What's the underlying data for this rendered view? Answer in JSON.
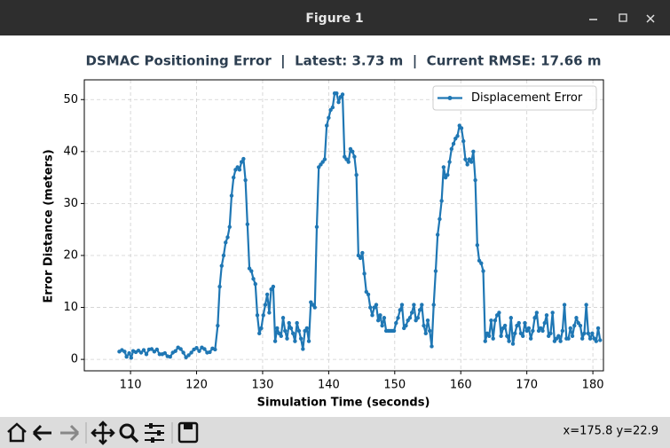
{
  "window": {
    "title": "Figure 1"
  },
  "chart_data": {
    "type": "line",
    "title": "DSMAC Positioning Error  |  Latest: 3.73 m  |  Current RMSE: 17.66 m",
    "x_label": "Simulation Time (seconds)",
    "y_label": "Error Distance (meters)",
    "x": [
      108.3,
      108.7,
      109.1,
      109.4,
      109.8,
      110.1,
      110.4,
      110.8,
      111.2,
      111.6,
      112,
      112.4,
      112.8,
      113.2,
      113.6,
      114,
      114.4,
      114.8,
      115.2,
      115.6,
      116,
      116.4,
      116.8,
      117.2,
      117.6,
      118,
      118.4,
      118.8,
      119.2,
      119.6,
      120,
      120.4,
      120.8,
      121.2,
      121.6,
      122,
      122.4,
      122.8,
      123.2,
      123.5,
      123.8,
      124.1,
      124.4,
      124.7,
      125,
      125.3,
      125.6,
      125.9,
      126.2,
      126.5,
      126.8,
      127.1,
      127.4,
      127.7,
      128,
      128.3,
      128.6,
      128.9,
      129.2,
      129.5,
      129.8,
      130.1,
      130.4,
      130.7,
      131,
      131.3,
      131.6,
      131.9,
      132.2,
      132.5,
      132.8,
      133.1,
      133.4,
      133.7,
      134,
      134.3,
      134.6,
      134.9,
      135.2,
      135.5,
      135.8,
      136.1,
      136.4,
      136.7,
      137,
      137.3,
      137.6,
      137.9,
      138.2,
      138.5,
      138.8,
      139.1,
      139.4,
      139.7,
      140,
      140.3,
      140.6,
      140.9,
      141.2,
      141.5,
      141.8,
      142.1,
      142.4,
      142.7,
      143,
      143.3,
      143.6,
      143.9,
      144.2,
      144.5,
      144.8,
      145.1,
      145.4,
      145.7,
      146,
      146.3,
      146.6,
      146.9,
      147.2,
      147.5,
      147.8,
      148.1,
      148.4,
      148.7,
      149,
      149.3,
      149.6,
      149.9,
      150.2,
      150.5,
      150.8,
      151.1,
      151.4,
      151.7,
      152,
      152.3,
      152.6,
      152.9,
      153.2,
      153.5,
      153.8,
      154.1,
      154.4,
      154.7,
      155,
      155.3,
      155.6,
      155.9,
      156.2,
      156.5,
      156.8,
      157.1,
      157.4,
      157.7,
      158,
      158.3,
      158.6,
      158.9,
      159.2,
      159.5,
      159.8,
      160.1,
      160.4,
      160.7,
      161,
      161.3,
      161.6,
      161.9,
      162.2,
      162.5,
      162.8,
      163.1,
      163.4,
      163.7,
      164,
      164.3,
      164.6,
      164.9,
      165.2,
      165.5,
      165.8,
      166.1,
      166.4,
      166.7,
      167,
      167.3,
      167.6,
      167.9,
      168.2,
      168.5,
      168.8,
      169.1,
      169.4,
      169.7,
      170,
      170.3,
      170.6,
      170.9,
      171.2,
      171.5,
      171.8,
      172.1,
      172.4,
      172.7,
      173,
      173.3,
      173.6,
      173.9,
      174.2,
      174.5,
      174.8,
      175.1,
      175.4,
      175.7,
      176,
      176.3,
      176.6,
      176.9,
      177.2,
      177.5,
      177.8,
      178.1,
      178.4,
      178.7,
      179,
      179.3,
      179.6,
      179.9,
      180.2,
      180.5,
      180.8,
      181.1
    ],
    "series": [
      {
        "name": "Displacement Error",
        "color": "#1f77b4",
        "values": [
          1.5,
          1.8,
          1.5,
          0.5,
          1.2,
          0.3,
          1.6,
          1.4,
          1.7,
          1.3,
          1.8,
          1.0,
          1.9,
          2.0,
          1.5,
          1.9,
          1.0,
          1.0,
          1.2,
          0.6,
          0.5,
          1.3,
          1.6,
          2.3,
          2.0,
          1.3,
          0.4,
          0.8,
          1.3,
          1.9,
          2.2,
          1.6,
          2.3,
          2.0,
          1.3,
          1.4,
          2.1,
          1.9,
          6.5,
          14,
          18,
          20,
          22.5,
          23.5,
          25.5,
          31.5,
          35,
          36.5,
          37,
          36.5,
          38,
          38.6,
          34.5,
          26,
          17.5,
          17,
          15.5,
          14.5,
          8.5,
          5,
          6,
          8.5,
          10.5,
          12.5,
          9,
          13.5,
          14,
          3.5,
          6,
          5,
          4.5,
          8,
          5.5,
          4,
          7,
          6,
          5,
          3.5,
          7,
          5.5,
          4,
          2,
          5.5,
          6,
          3.5,
          11,
          10.5,
          10,
          25.5,
          37,
          37.5,
          38,
          38.5,
          45,
          46.5,
          48,
          48.5,
          51.2,
          51.2,
          49.5,
          50.5,
          51,
          39,
          38.5,
          38,
          40.5,
          40,
          39,
          35.5,
          20,
          19.5,
          20.5,
          16.5,
          13,
          12.5,
          10,
          8.5,
          10,
          10.5,
          7.5,
          8.5,
          6.5,
          8,
          5.5,
          5.5,
          5.5,
          5.5,
          5.5,
          7,
          8,
          9.5,
          10.5,
          6,
          6.5,
          7.5,
          8,
          9,
          10.5,
          7.5,
          8,
          9.5,
          10.5,
          6.5,
          5,
          7.5,
          5.5,
          2.5,
          10.5,
          17,
          24,
          27,
          30.5,
          37,
          35,
          35.5,
          38,
          40.5,
          41.5,
          42.5,
          43,
          45,
          44.5,
          42,
          38.5,
          37.5,
          38.5,
          38,
          40,
          34.5,
          22,
          19,
          18.5,
          17,
          3.5,
          5,
          4.5,
          7.5,
          4,
          7.5,
          8.5,
          9,
          4.5,
          6,
          6.5,
          4.5,
          3.5,
          8,
          3,
          5,
          6.5,
          7,
          5,
          4.5,
          7,
          5.5,
          6,
          4,
          5.5,
          8,
          9,
          5.5,
          6,
          5.5,
          7,
          8.5,
          4.5,
          5,
          9,
          3.5,
          4,
          4.5,
          3.5,
          5.5,
          10.5,
          4,
          4,
          6,
          4.5,
          6.5,
          8,
          7,
          6.5,
          4,
          5,
          10.5,
          5,
          4,
          5,
          4,
          3.5,
          6,
          3.7
        ]
      }
    ],
    "xlim": [
      103,
      181.6
    ],
    "ylim": [
      -2.2,
      53.8
    ],
    "xticks": [
      110,
      120,
      130,
      140,
      150,
      160,
      170,
      180
    ],
    "yticks": [
      0,
      10,
      20,
      30,
      40,
      50
    ],
    "grid": true,
    "legend": "upper right"
  },
  "toolbar": {
    "status": "x=175.8 y=22.9"
  }
}
